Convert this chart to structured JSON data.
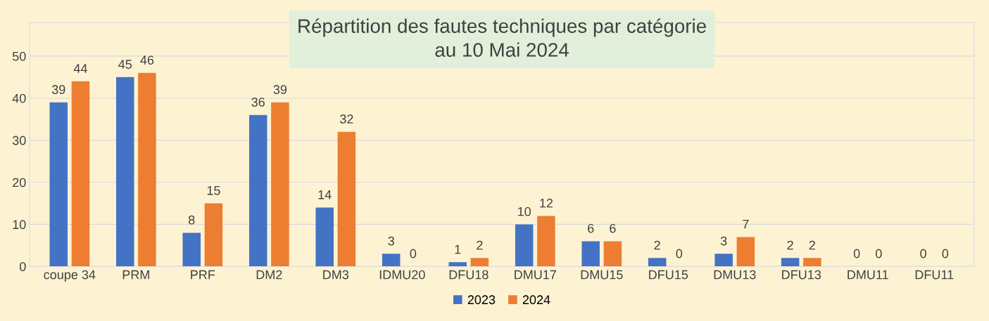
{
  "chart_data": {
    "type": "bar",
    "title": "Répartition des fautes techniques par catégorie\nau 10 Mai 2024",
    "categories": [
      "coupe 34",
      "PRM",
      "PRF",
      "DM2",
      "DM3",
      "IDMU20",
      "DFU18",
      "DMU17",
      "DMU15",
      "DFU15",
      "DMU13",
      "DFU13",
      "DMU11",
      "DFU11"
    ],
    "series": [
      {
        "name": "2023",
        "color": "#4472c4",
        "values": [
          39,
          45,
          8,
          36,
          14,
          3,
          1,
          10,
          6,
          2,
          3,
          2,
          0,
          0
        ]
      },
      {
        "name": "2024",
        "color": "#ed7d31",
        "values": [
          44,
          46,
          15,
          39,
          32,
          0,
          2,
          12,
          6,
          0,
          7,
          2,
          0,
          0
        ]
      }
    ],
    "ylim": [
      0,
      58
    ],
    "yticks": [
      0,
      10,
      20,
      30,
      40,
      50
    ],
    "grid": "y",
    "legend": "bottom",
    "data_labels": true
  }
}
